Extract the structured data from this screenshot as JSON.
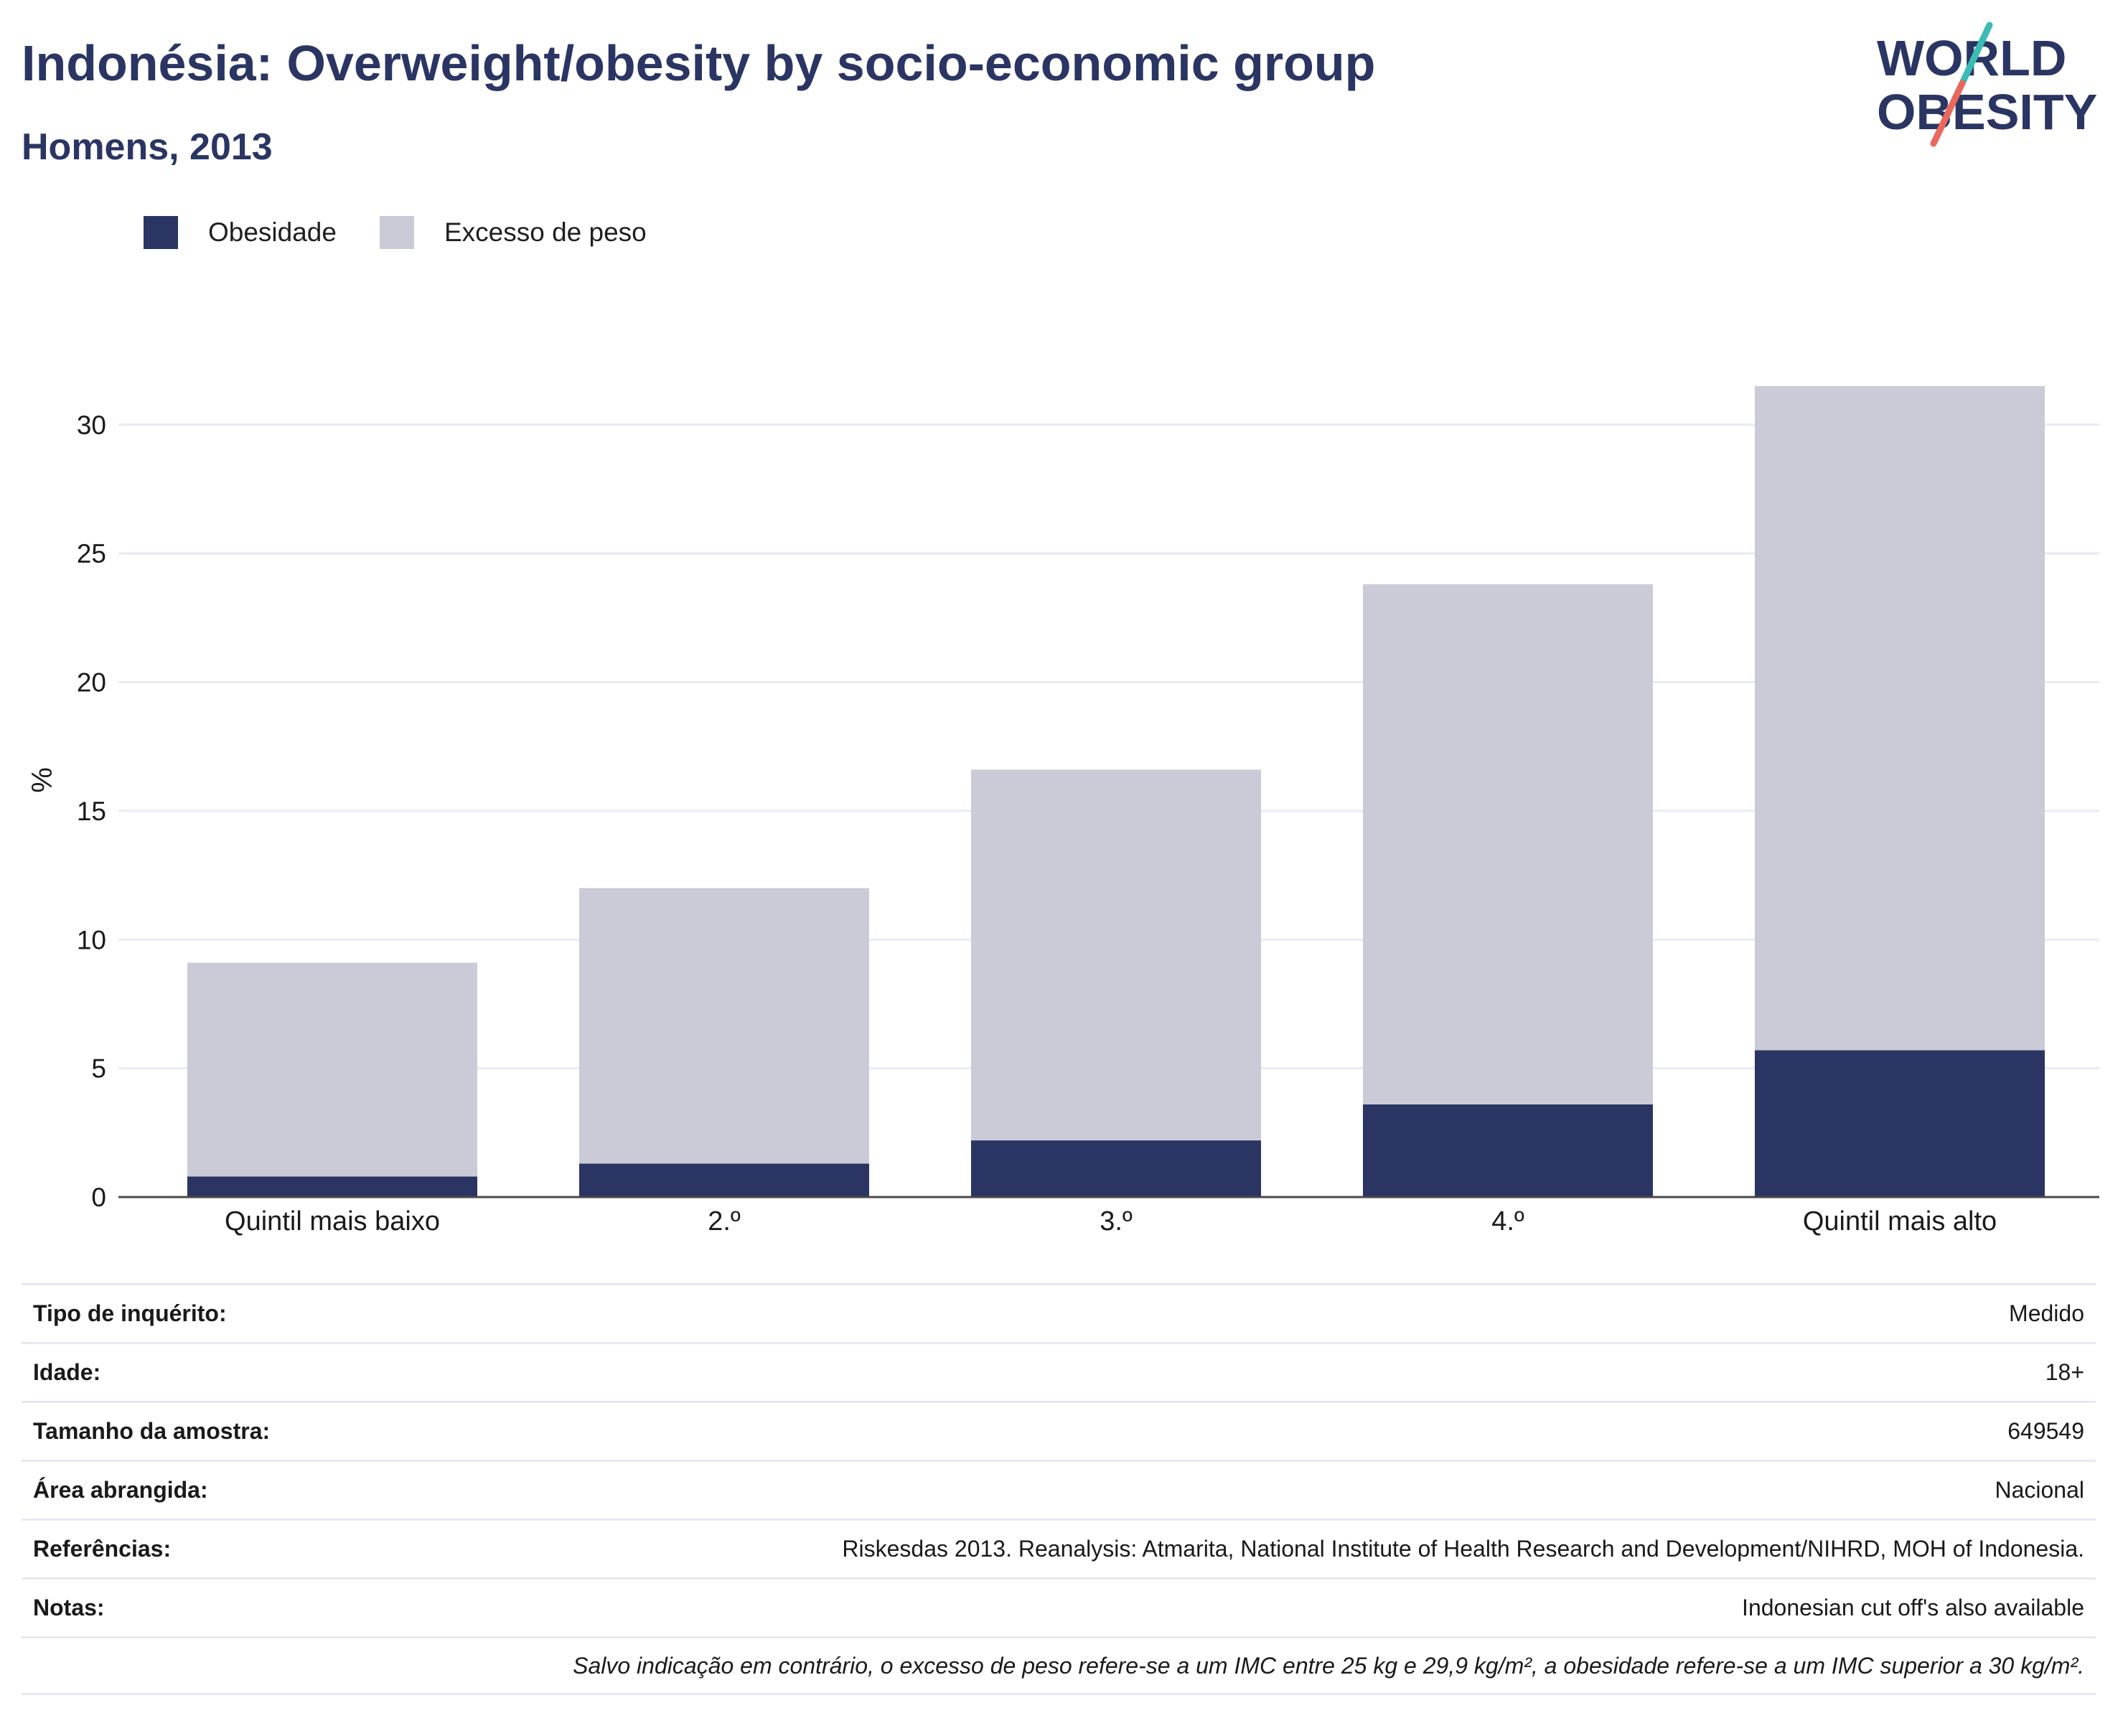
{
  "header": {
    "title": "Indonésia: Overweight/obesity by socio-economic group",
    "subtitle": "Homens, 2013"
  },
  "logo": {
    "line1": "WORLD",
    "line2": "OBESITY"
  },
  "colors": {
    "obesity": "#2a3563",
    "overweight": "#cacbd7",
    "title": "#2a3563",
    "grid": "#e8ebf3",
    "axis": "#4a4a4a",
    "logo_teal": "#3bbbb5",
    "logo_red": "#e8685c"
  },
  "legend": [
    {
      "label": "Obesidade",
      "color": "#2a3563"
    },
    {
      "label": "Excesso de peso",
      "color": "#cacbd7"
    }
  ],
  "chart_data": {
    "type": "bar",
    "stacked": true,
    "categories": [
      "Quintil mais baixo",
      "2.º",
      "3.º",
      "4.º",
      "Quintil mais alto"
    ],
    "series": [
      {
        "name": "Obesidade",
        "values": [
          0.8,
          1.3,
          2.2,
          3.6,
          5.7
        ]
      },
      {
        "name": "Excesso de peso",
        "values": [
          8.3,
          10.7,
          14.4,
          20.2,
          25.8
        ]
      }
    ],
    "ylabel": "%",
    "ylim": [
      0,
      32
    ],
    "yticks": [
      0,
      5,
      10,
      15,
      20,
      25,
      30
    ],
    "grid": true,
    "legend_position": "top-left"
  },
  "meta": {
    "rows": [
      {
        "key": "Tipo de inquérito:",
        "value": "Medido"
      },
      {
        "key": "Idade:",
        "value": "18+"
      },
      {
        "key": "Tamanho da amostra:",
        "value": "649549"
      },
      {
        "key": "Área abrangida:",
        "value": "Nacional"
      },
      {
        "key": "Referências:",
        "value": "Riskesdas 2013. Reanalysis: Atmarita, National Institute of Health Research and Development/NIHRD, MOH of Indonesia."
      },
      {
        "key": "Notas:",
        "value": "Indonesian cut off's also available"
      }
    ],
    "footnote": "Salvo indicação em contrário, o excesso de peso refere-se a um IMC entre 25 kg e 29,9 kg/m², a obesidade refere-se a um IMC superior a 30 kg/m²."
  }
}
